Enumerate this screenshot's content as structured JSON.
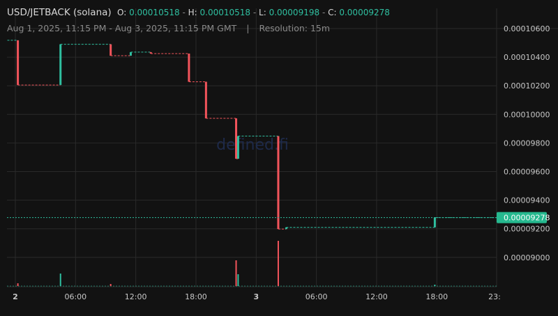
{
  "header": {
    "pair": "USD/JETBACK (solana)",
    "o_label": "O:",
    "o": "0.00010518",
    "h_label": "H:",
    "h": "0.00010518",
    "l_label": "L:",
    "l": "0.00009198",
    "c_label": "C:",
    "c": "0.00009278",
    "range": "Aug 1, 2025, 11:15 PM - Aug 3, 2025, 11:15 PM GMT",
    "separator": "|",
    "resolution": "Resolution: 15m"
  },
  "watermark": "defined.fi",
  "colors": {
    "background": "#121212",
    "grid": "#2a2a2a",
    "up": "#2fbfa0",
    "down": "#f2545b",
    "price_label_bg": "#26b98f",
    "axis_text": "#c8c8c8"
  },
  "chart_data": {
    "type": "candlestick",
    "price_axis": {
      "ticks": [
        "0.00010600",
        "0.00010400",
        "0.00010200",
        "0.00010000",
        "0.00009800",
        "0.00009600",
        "0.00009400",
        "0.00009200",
        "0.00009000"
      ],
      "current_price": "0.00009278"
    },
    "time_axis": {
      "ticks": [
        "2",
        "06:00",
        "12:00",
        "18:00",
        "3",
        "06:00",
        "12:00",
        "18:00",
        "23:"
      ],
      "tick_hours": [
        0,
        6,
        12,
        18,
        24,
        30,
        36,
        42,
        47.75
      ]
    },
    "grid": true,
    "candles": [
      {
        "t": -0.8,
        "o": 0.00010518,
        "c": 0.00010518,
        "dir": "flat"
      },
      {
        "t": 0.25,
        "o": 0.00010518,
        "c": 0.00010205,
        "dir": "down"
      },
      {
        "t": 4.5,
        "o": 0.00010205,
        "c": 0.0001049,
        "dir": "up"
      },
      {
        "t": 9.5,
        "o": 0.0001049,
        "c": 0.0001041,
        "dir": "down"
      },
      {
        "t": 11.5,
        "o": 0.0001041,
        "c": 0.00010435,
        "dir": "up"
      },
      {
        "t": 13.5,
        "o": 0.00010435,
        "c": 0.00010425,
        "dir": "down"
      },
      {
        "t": 17.3,
        "o": 0.00010425,
        "c": 0.00010228,
        "dir": "down"
      },
      {
        "t": 19.0,
        "o": 0.00010228,
        "c": 9.972e-05,
        "dir": "down"
      },
      {
        "t": 22.0,
        "o": 9.972e-05,
        "c": 9.69e-05,
        "dir": "down"
      },
      {
        "t": 22.2,
        "o": 9.69e-05,
        "c": 9.848e-05,
        "dir": "up"
      },
      {
        "t": 26.2,
        "o": 9.848e-05,
        "c": 9.198e-05,
        "dir": "down"
      },
      {
        "t": 27.0,
        "o": 9.198e-05,
        "c": 9.21e-05,
        "dir": "up"
      },
      {
        "t": 41.8,
        "o": 9.21e-05,
        "c": 9.278e-05,
        "dir": "up"
      },
      {
        "t": 47.5,
        "o": 9.278e-05,
        "c": 9.278e-05,
        "dir": "flat"
      }
    ],
    "volume": [
      {
        "t": 0.25,
        "v": 4,
        "dir": "down"
      },
      {
        "t": 4.5,
        "v": 18,
        "dir": "up"
      },
      {
        "t": 9.5,
        "v": 3,
        "dir": "down"
      },
      {
        "t": 22.0,
        "v": 37,
        "dir": "down"
      },
      {
        "t": 22.2,
        "v": 17,
        "dir": "up"
      },
      {
        "t": 26.2,
        "v": 65,
        "dir": "down"
      },
      {
        "t": 41.8,
        "v": 2,
        "dir": "up"
      }
    ]
  }
}
